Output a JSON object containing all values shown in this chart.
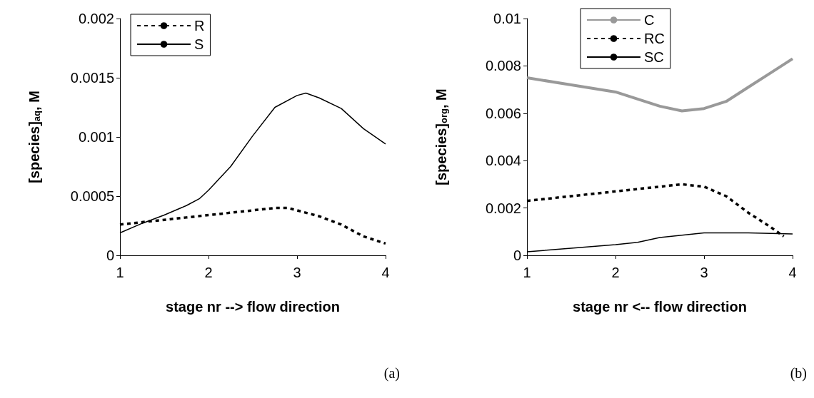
{
  "chart_data": [
    {
      "type": "line",
      "xlabel": "stage nr --> flow direction",
      "ylabel": "[species]$_{aq}$, M",
      "xlim": [
        1,
        4
      ],
      "xticks": [
        1,
        2,
        3,
        4
      ],
      "ylim": [
        0,
        0.002
      ],
      "yticks": [
        0,
        0.0005,
        0.001,
        0.0015,
        0.002
      ],
      "grid": false,
      "legend": "top left",
      "marker": "none",
      "annotations": [
        "(a)"
      ],
      "series": [
        {
          "name": "R",
          "color": "#000000",
          "line_style": "dashed",
          "x": [
            1,
            1.25,
            1.5,
            1.75,
            2,
            2.25,
            2.5,
            2.75,
            2.9,
            3,
            3.25,
            3.5,
            3.75,
            4
          ],
          "values": [
            0.00026,
            0.00028,
            0.0003,
            0.00032,
            0.00034,
            0.00036,
            0.00038,
            0.0004,
            0.0004,
            0.00038,
            0.00033,
            0.00026,
            0.00016,
            0.0001
          ]
        },
        {
          "name": "S",
          "color": "#000000",
          "line_style": "solid",
          "x": [
            1,
            1.25,
            1.5,
            1.75,
            1.9,
            2,
            2.25,
            2.5,
            2.75,
            3,
            3.1,
            3.25,
            3.5,
            3.75,
            4
          ],
          "values": [
            0.00019,
            0.00027,
            0.00034,
            0.00042,
            0.00048,
            0.00055,
            0.00075,
            0.00101,
            0.00125,
            0.00135,
            0.00137,
            0.00133,
            0.00124,
            0.00107,
            0.00094
          ]
        }
      ]
    },
    {
      "type": "line",
      "xlabel": "stage nr <-- flow direction",
      "ylabel": "[species]$_{org}$, M",
      "xlim": [
        1,
        4
      ],
      "xticks": [
        1,
        2,
        3,
        4
      ],
      "ylim": [
        0,
        0.01
      ],
      "yticks": [
        0,
        0.002,
        0.004,
        0.006,
        0.008,
        0.01
      ],
      "grid": false,
      "legend": "top",
      "marker": "none",
      "annotations": [
        "(b)"
      ],
      "series": [
        {
          "name": "C",
          "color": "#999999",
          "line_style": "solid",
          "x": [
            1,
            1.5,
            2,
            2.25,
            2.5,
            2.75,
            3,
            3.25,
            3.5,
            3.75,
            4
          ],
          "values": [
            0.0075,
            0.0072,
            0.0069,
            0.0066,
            0.0063,
            0.0061,
            0.0062,
            0.0065,
            0.0071,
            0.0077,
            0.0083
          ]
        },
        {
          "name": "RC",
          "color": "#000000",
          "line_style": "dashed",
          "x": [
            1,
            1.5,
            2,
            2.25,
            2.5,
            2.75,
            3,
            3.25,
            3.5,
            3.75,
            3.9
          ],
          "values": [
            0.0023,
            0.0025,
            0.0027,
            0.0028,
            0.0029,
            0.003,
            0.0029,
            0.0025,
            0.0018,
            0.0012,
            0.0008
          ]
        },
        {
          "name": "SC",
          "color": "#000000",
          "line_style": "solid",
          "x": [
            1,
            1.5,
            2,
            2.25,
            2.5,
            3,
            3.5,
            4
          ],
          "values": [
            0.00015,
            0.0003,
            0.00045,
            0.00055,
            0.00075,
            0.00095,
            0.00095,
            0.0009
          ]
        }
      ]
    }
  ]
}
